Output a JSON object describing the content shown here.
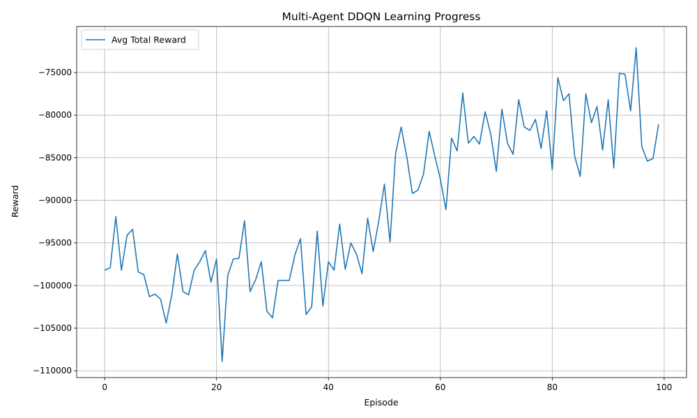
{
  "chart_data": {
    "type": "line",
    "title": "Multi-Agent DDQN Learning Progress",
    "xlabel": "Episode",
    "ylabel": "Reward",
    "xlim": [
      -5,
      104
    ],
    "ylim": [
      -110800,
      -69600
    ],
    "xticks": [
      0,
      20,
      40,
      60,
      80,
      100
    ],
    "yticks": [
      -110000,
      -105000,
      -100000,
      -95000,
      -90000,
      -85000,
      -80000,
      -75000
    ],
    "grid": true,
    "legend_position": "top-left",
    "series": [
      {
        "name": "Avg Total Reward",
        "color": "#1f77b4",
        "x": [
          0,
          1,
          2,
          3,
          4,
          5,
          6,
          7,
          8,
          9,
          10,
          11,
          12,
          13,
          14,
          15,
          16,
          17,
          18,
          19,
          20,
          21,
          22,
          23,
          24,
          25,
          26,
          27,
          28,
          29,
          30,
          31,
          32,
          33,
          34,
          35,
          36,
          37,
          38,
          39,
          40,
          41,
          42,
          43,
          44,
          45,
          46,
          47,
          48,
          49,
          50,
          51,
          52,
          53,
          54,
          55,
          56,
          57,
          58,
          59,
          60,
          61,
          62,
          63,
          64,
          65,
          66,
          67,
          68,
          69,
          70,
          71,
          72,
          73,
          74,
          75,
          76,
          77,
          78,
          79,
          80,
          81,
          82,
          83,
          84,
          85,
          86,
          87,
          88,
          89,
          90,
          91,
          92,
          93,
          94,
          95,
          96,
          97,
          98,
          99
        ],
        "values": [
          -98200,
          -97900,
          -91900,
          -98200,
          -94100,
          -93400,
          -98400,
          -98700,
          -101300,
          -101000,
          -101600,
          -104400,
          -101100,
          -96300,
          -100700,
          -101100,
          -98200,
          -97200,
          -95900,
          -99600,
          -96900,
          -108900,
          -98800,
          -96900,
          -96800,
          -92400,
          -100700,
          -99300,
          -97200,
          -103000,
          -103800,
          -99400,
          -99400,
          -99400,
          -96400,
          -94500,
          -103400,
          -102500,
          -93600,
          -102400,
          -97200,
          -98200,
          -92800,
          -98100,
          -95000,
          -96300,
          -98600,
          -92100,
          -96000,
          -92400,
          -88100,
          -94900,
          -84500,
          -81400,
          -84900,
          -89200,
          -88800,
          -86900,
          -81900,
          -84800,
          -87500,
          -91100,
          -82700,
          -84200,
          -77400,
          -83300,
          -82500,
          -83400,
          -79600,
          -82200,
          -86600,
          -79300,
          -83300,
          -84600,
          -78200,
          -81400,
          -81800,
          -80500,
          -83900,
          -79500,
          -86400,
          -75600,
          -78300,
          -77500,
          -84800,
          -87200,
          -77500,
          -80900,
          -79000,
          -84100,
          -78200,
          -86200,
          -75100,
          -75200,
          -79500,
          -72100,
          -83700,
          -85400,
          -85100,
          -81100
        ]
      }
    ]
  },
  "tick_labels": {
    "x": [
      "0",
      "20",
      "40",
      "60",
      "80",
      "100"
    ],
    "y": [
      "−110000",
      "−105000",
      "−100000",
      "−95000",
      "−90000",
      "−85000",
      "−80000",
      "−75000"
    ]
  }
}
